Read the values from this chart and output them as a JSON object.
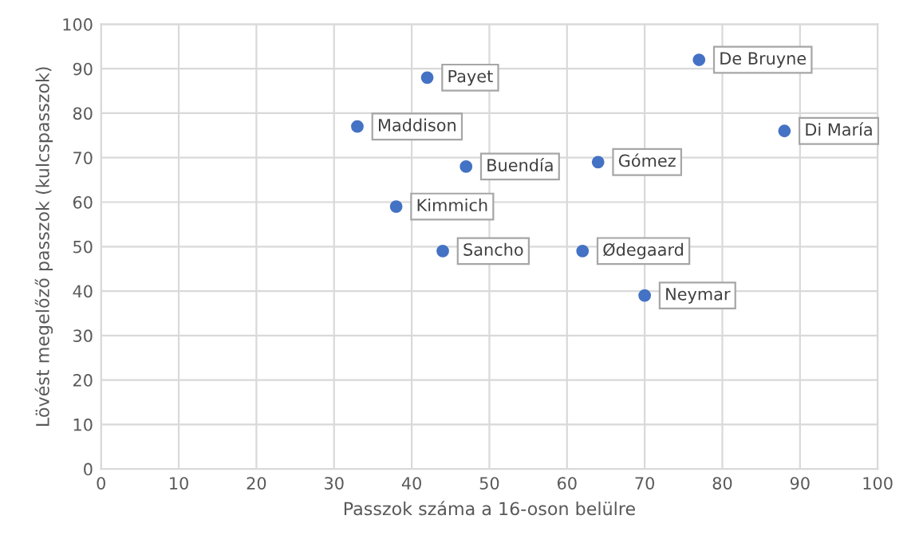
{
  "chart_data": {
    "type": "scatter",
    "xlabel": "Passzok száma a 16-oson belülre",
    "ylabel": "Lövést megelőző passzok (kulcspasszok)",
    "xlim": [
      0,
      100
    ],
    "ylim": [
      0,
      100
    ],
    "xticks": [
      0,
      10,
      20,
      30,
      40,
      50,
      60,
      70,
      80,
      90,
      100
    ],
    "yticks": [
      0,
      10,
      20,
      30,
      40,
      50,
      60,
      70,
      80,
      90,
      100
    ],
    "grid": true,
    "marker": "circle",
    "series": [
      {
        "color": "#4472c4",
        "x": [
          42,
          33,
          77,
          88,
          47,
          38,
          44,
          62,
          70,
          64
        ],
        "values": [
          88,
          77,
          92,
          76,
          68,
          59,
          49,
          49,
          39,
          69
        ]
      }
    ],
    "annotations": [
      {
        "text": "Payet",
        "x": 42,
        "y": 88
      },
      {
        "text": "Maddison",
        "x": 33,
        "y": 77
      },
      {
        "text": "De Bruyne",
        "x": 77,
        "y": 92
      },
      {
        "text": "Di María",
        "x": 88,
        "y": 76
      },
      {
        "text": "Buendía",
        "x": 47,
        "y": 68
      },
      {
        "text": "Kimmich",
        "x": 38,
        "y": 59
      },
      {
        "text": "Sancho",
        "x": 44,
        "y": 49
      },
      {
        "text": "Ødegaard",
        "x": 62,
        "y": 49
      },
      {
        "text": "Neymar",
        "x": 70,
        "y": 39
      },
      {
        "text": "Gómez",
        "x": 64,
        "y": 69
      }
    ]
  }
}
